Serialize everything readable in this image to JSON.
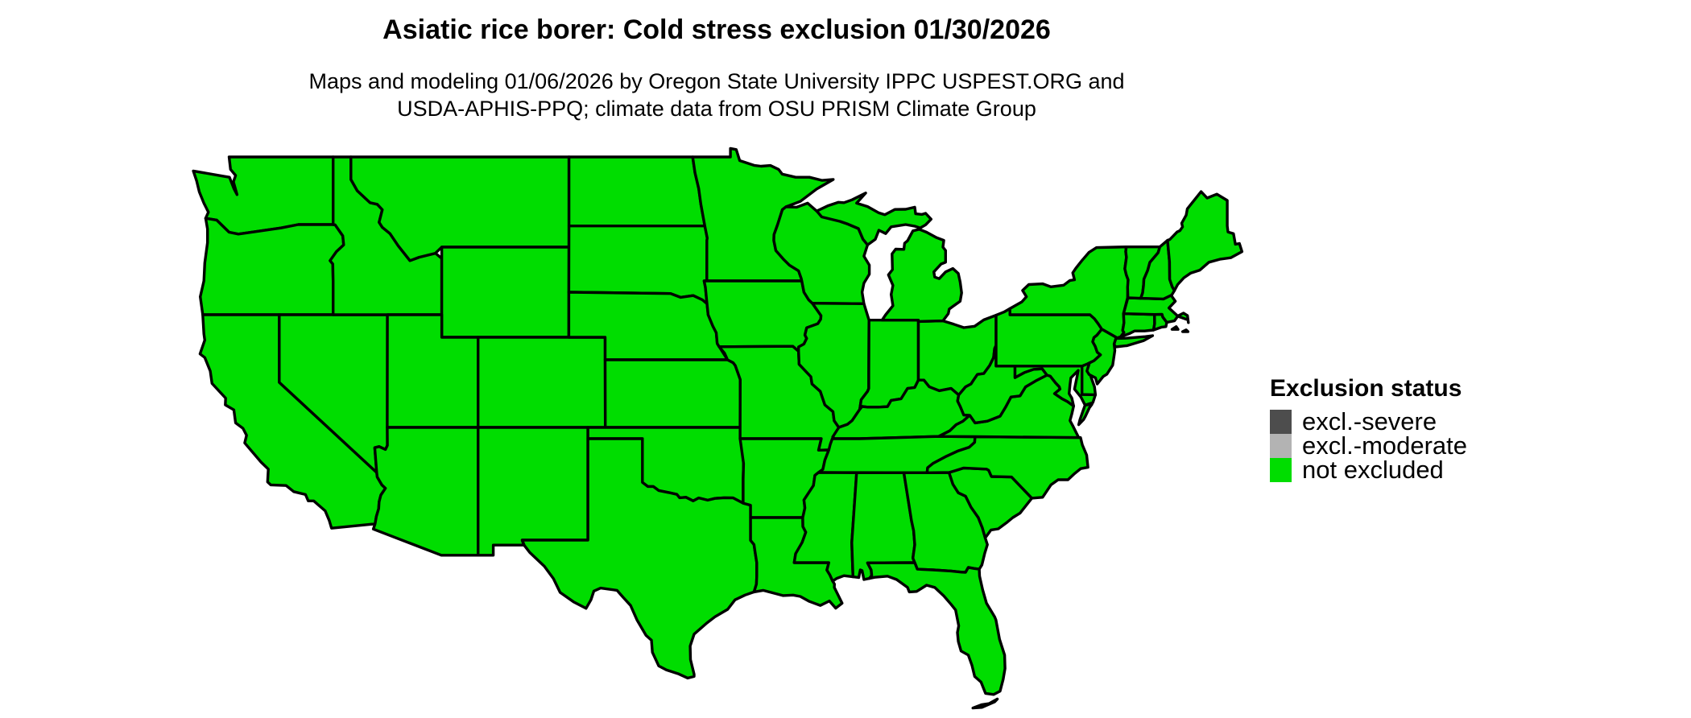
{
  "title": "Asiatic rice borer: Cold stress exclusion 01/30/2026",
  "subtitle_line1": "Maps and modeling 01/06/2026 by Oregon State University IPPC USPEST.ORG and",
  "subtitle_line2": "USDA-APHIS-PPQ; climate data from OSU PRISM Climate Group",
  "legend": {
    "title": "Exclusion status",
    "items": [
      {
        "label": "excl.-severe",
        "color": "#4d4d4d"
      },
      {
        "label": "excl.-moderate",
        "color": "#b3b3b3"
      },
      {
        "label": "not excluded",
        "color": "#00dd00"
      }
    ]
  },
  "map": {
    "region": "contiguous United States",
    "status_all_states": "not excluded",
    "border_color": "#000000",
    "background_color": "#ffffff",
    "states": [
      "Washington",
      "Oregon",
      "California",
      "Nevada",
      "Idaho",
      "Montana",
      "Wyoming",
      "Utah",
      "Colorado",
      "Arizona",
      "New Mexico",
      "North Dakota",
      "South Dakota",
      "Nebraska",
      "Kansas",
      "Oklahoma",
      "Texas",
      "Minnesota",
      "Iowa",
      "Missouri",
      "Arkansas",
      "Louisiana",
      "Wisconsin",
      "Illinois",
      "Indiana",
      "Ohio",
      "Michigan",
      "Kentucky",
      "Tennessee",
      "Mississippi",
      "Alabama",
      "Georgia",
      "Florida",
      "South Carolina",
      "North Carolina",
      "Virginia",
      "West Virginia",
      "Maryland",
      "Delaware",
      "Pennsylvania",
      "New Jersey",
      "New York",
      "Connecticut",
      "Rhode Island",
      "Massachusetts",
      "Vermont",
      "New Hampshire",
      "Maine"
    ]
  }
}
